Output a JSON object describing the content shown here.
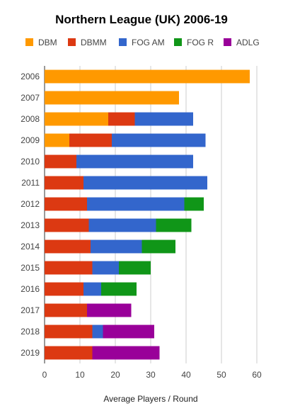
{
  "chart_data": {
    "type": "bar",
    "orientation": "horizontal",
    "stacked": true,
    "title": "Northern League (UK) 2006-19",
    "xlabel": "Average Players / Round",
    "ylabel": "",
    "xlim": [
      0,
      60
    ],
    "xticks": [
      0,
      10,
      20,
      30,
      40,
      50,
      60
    ],
    "grid": true,
    "legend_position": "top",
    "categories": [
      "2006",
      "2007",
      "2008",
      "2009",
      "2010",
      "2011",
      "2012",
      "2013",
      "2014",
      "2015",
      "2016",
      "2017",
      "2018",
      "2019"
    ],
    "series": [
      {
        "name": "DBM",
        "color": "#ff9900",
        "values": [
          58,
          38,
          18,
          7,
          0,
          0,
          0,
          0,
          0,
          0,
          0,
          0,
          0,
          0
        ]
      },
      {
        "name": "DBMM",
        "color": "#dc3912",
        "values": [
          0,
          0,
          7.5,
          12,
          9,
          11,
          12,
          12.5,
          13,
          13.5,
          11,
          12,
          13.5,
          13.5
        ]
      },
      {
        "name": "FOG AM",
        "color": "#3366cc",
        "values": [
          0,
          0,
          16.5,
          26.5,
          33,
          35,
          27.5,
          19,
          14.5,
          7.5,
          5,
          0,
          3,
          0
        ]
      },
      {
        "name": "FOG R",
        "color": "#109618",
        "values": [
          0,
          0,
          0,
          0,
          0,
          0,
          5.5,
          10,
          9.5,
          9,
          10,
          0,
          0,
          0
        ]
      },
      {
        "name": "ADLG",
        "color": "#990099",
        "values": [
          0,
          0,
          0,
          0,
          0,
          0,
          0,
          0,
          0,
          0,
          0,
          12.5,
          14.5,
          19
        ]
      }
    ]
  }
}
